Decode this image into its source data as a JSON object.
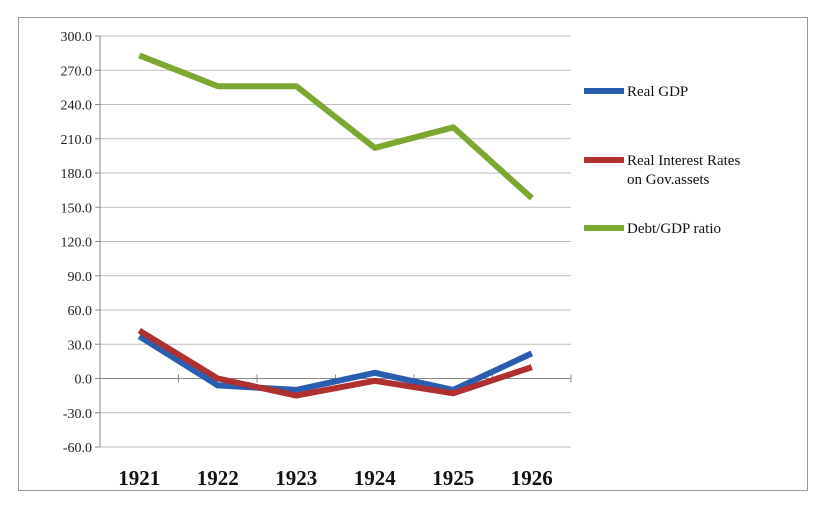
{
  "chart_data": {
    "type": "line",
    "title": "",
    "xlabel": "",
    "ylabel": "",
    "categories": [
      "1921",
      "1922",
      "1923",
      "1924",
      "1925",
      "1926"
    ],
    "yticks": [
      "300.0",
      "270.0",
      "240.0",
      "210.0",
      "180.0",
      "150.0",
      "120.0",
      "90.0",
      "60.0",
      "30.0",
      "0.0",
      "-30.0",
      "-60.0"
    ],
    "ylim": [
      -60,
      300
    ],
    "grid": "horizontal",
    "legend_position": "right",
    "series": [
      {
        "name": "Real GDP",
        "color": "#2a5db0",
        "values": [
          37,
          -6,
          -10,
          5,
          -10,
          22
        ]
      },
      {
        "name": "Real Interest Rates on Gov.assets",
        "legend_lines": [
          "Real Interest Rates",
          "on Gov.assets"
        ],
        "color": "#b03030",
        "values": [
          42,
          0,
          -15,
          -2,
          -13,
          10
        ]
      },
      {
        "name": "Debt/GDP ratio",
        "color": "#7ca832",
        "values": [
          283,
          256,
          256,
          202,
          220,
          158
        ]
      }
    ]
  }
}
